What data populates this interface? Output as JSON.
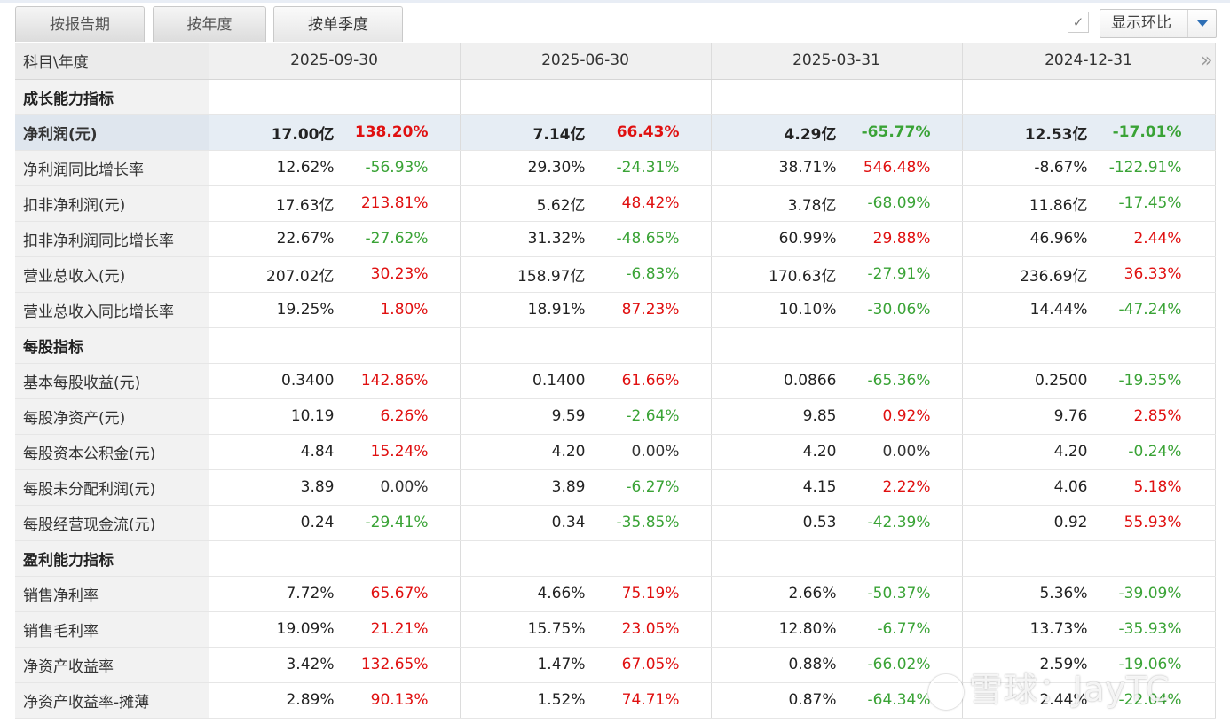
{
  "tabs": [
    {
      "label": "按报告期"
    },
    {
      "label": "按年度"
    },
    {
      "label": "按单季度"
    }
  ],
  "toggle": {
    "checkbox_mark": "✓",
    "select_label": "显示环比"
  },
  "table": {
    "corner_label": "科目\\年度",
    "periods": [
      "2025-09-30",
      "2025-06-30",
      "2025-03-31",
      "2024-12-31"
    ],
    "rows": [
      {
        "type": "section",
        "label": "成长能力指标"
      },
      {
        "type": "highlight",
        "label": "净利润(元)",
        "cells": [
          {
            "v": "17.00亿",
            "c": "138.20%",
            "d": "up"
          },
          {
            "v": "7.14亿",
            "c": "66.43%",
            "d": "up"
          },
          {
            "v": "4.29亿",
            "c": "-65.77%",
            "d": "down"
          },
          {
            "v": "12.53亿",
            "c": "-17.01%",
            "d": "down"
          }
        ]
      },
      {
        "type": "data",
        "label": "净利润同比增长率",
        "cells": [
          {
            "v": "12.62%",
            "c": "-56.93%",
            "d": "down"
          },
          {
            "v": "29.30%",
            "c": "-24.31%",
            "d": "down"
          },
          {
            "v": "38.71%",
            "c": "546.48%",
            "d": "up"
          },
          {
            "v": "-8.67%",
            "c": "-122.91%",
            "d": "down"
          }
        ]
      },
      {
        "type": "data",
        "label": "扣非净利润(元)",
        "cells": [
          {
            "v": "17.63亿",
            "c": "213.81%",
            "d": "up"
          },
          {
            "v": "5.62亿",
            "c": "48.42%",
            "d": "up"
          },
          {
            "v": "3.78亿",
            "c": "-68.09%",
            "d": "down"
          },
          {
            "v": "11.86亿",
            "c": "-17.45%",
            "d": "down"
          }
        ]
      },
      {
        "type": "data",
        "label": "扣非净利润同比增长率",
        "cells": [
          {
            "v": "22.67%",
            "c": "-27.62%",
            "d": "down"
          },
          {
            "v": "31.32%",
            "c": "-48.65%",
            "d": "down"
          },
          {
            "v": "60.99%",
            "c": "29.88%",
            "d": "up"
          },
          {
            "v": "46.96%",
            "c": "2.44%",
            "d": "up"
          }
        ]
      },
      {
        "type": "data",
        "label": "营业总收入(元)",
        "cells": [
          {
            "v": "207.02亿",
            "c": "30.23%",
            "d": "up"
          },
          {
            "v": "158.97亿",
            "c": "-6.83%",
            "d": "down"
          },
          {
            "v": "170.63亿",
            "c": "-27.91%",
            "d": "down"
          },
          {
            "v": "236.69亿",
            "c": "36.33%",
            "d": "up"
          }
        ]
      },
      {
        "type": "data",
        "label": "营业总收入同比增长率",
        "cells": [
          {
            "v": "19.25%",
            "c": "1.80%",
            "d": "up"
          },
          {
            "v": "18.91%",
            "c": "87.23%",
            "d": "up"
          },
          {
            "v": "10.10%",
            "c": "-30.06%",
            "d": "down"
          },
          {
            "v": "14.44%",
            "c": "-47.24%",
            "d": "down"
          }
        ]
      },
      {
        "type": "section",
        "label": "每股指标"
      },
      {
        "type": "data",
        "label": "基本每股收益(元)",
        "cells": [
          {
            "v": "0.3400",
            "c": "142.86%",
            "d": "up"
          },
          {
            "v": "0.1400",
            "c": "61.66%",
            "d": "up"
          },
          {
            "v": "0.0866",
            "c": "-65.36%",
            "d": "down"
          },
          {
            "v": "0.2500",
            "c": "-19.35%",
            "d": "down"
          }
        ]
      },
      {
        "type": "data",
        "label": "每股净资产(元)",
        "cells": [
          {
            "v": "10.19",
            "c": "6.26%",
            "d": "up"
          },
          {
            "v": "9.59",
            "c": "-2.64%",
            "d": "down"
          },
          {
            "v": "9.85",
            "c": "0.92%",
            "d": "up"
          },
          {
            "v": "9.76",
            "c": "2.85%",
            "d": "up"
          }
        ]
      },
      {
        "type": "data",
        "label": "每股资本公积金(元)",
        "cells": [
          {
            "v": "4.84",
            "c": "15.24%",
            "d": "up"
          },
          {
            "v": "4.20",
            "c": "0.00%",
            "d": "flat"
          },
          {
            "v": "4.20",
            "c": "0.00%",
            "d": "flat"
          },
          {
            "v": "4.20",
            "c": "-0.24%",
            "d": "down"
          }
        ]
      },
      {
        "type": "data",
        "label": "每股未分配利润(元)",
        "cells": [
          {
            "v": "3.89",
            "c": "0.00%",
            "d": "flat"
          },
          {
            "v": "3.89",
            "c": "-6.27%",
            "d": "down"
          },
          {
            "v": "4.15",
            "c": "2.22%",
            "d": "up"
          },
          {
            "v": "4.06",
            "c": "5.18%",
            "d": "up"
          }
        ]
      },
      {
        "type": "data",
        "label": "每股经营现金流(元)",
        "cells": [
          {
            "v": "0.24",
            "c": "-29.41%",
            "d": "down"
          },
          {
            "v": "0.34",
            "c": "-35.85%",
            "d": "down"
          },
          {
            "v": "0.53",
            "c": "-42.39%",
            "d": "down"
          },
          {
            "v": "0.92",
            "c": "55.93%",
            "d": "up"
          }
        ]
      },
      {
        "type": "section",
        "label": "盈利能力指标"
      },
      {
        "type": "data",
        "label": "销售净利率",
        "cells": [
          {
            "v": "7.72%",
            "c": "65.67%",
            "d": "up"
          },
          {
            "v": "4.66%",
            "c": "75.19%",
            "d": "up"
          },
          {
            "v": "2.66%",
            "c": "-50.37%",
            "d": "down"
          },
          {
            "v": "5.36%",
            "c": "-39.09%",
            "d": "down"
          }
        ]
      },
      {
        "type": "data",
        "label": "销售毛利率",
        "cells": [
          {
            "v": "19.09%",
            "c": "21.21%",
            "d": "up"
          },
          {
            "v": "15.75%",
            "c": "23.05%",
            "d": "up"
          },
          {
            "v": "12.80%",
            "c": "-6.77%",
            "d": "down"
          },
          {
            "v": "13.73%",
            "c": "-35.93%",
            "d": "down"
          }
        ]
      },
      {
        "type": "data",
        "label": "净资产收益率",
        "cells": [
          {
            "v": "3.42%",
            "c": "132.65%",
            "d": "up"
          },
          {
            "v": "1.47%",
            "c": "67.05%",
            "d": "up"
          },
          {
            "v": "0.88%",
            "c": "-66.02%",
            "d": "down"
          },
          {
            "v": "2.59%",
            "c": "-19.06%",
            "d": "down"
          }
        ]
      },
      {
        "type": "data",
        "label": "净资产收益率-摊薄",
        "cells": [
          {
            "v": "2.89%",
            "c": "90.13%",
            "d": "up"
          },
          {
            "v": "1.52%",
            "c": "74.71%",
            "d": "up"
          },
          {
            "v": "0.87%",
            "c": "-64.34%",
            "d": "down"
          },
          {
            "v": "2.44%",
            "c": "-22.04%",
            "d": "down"
          }
        ]
      }
    ]
  },
  "more_icon": "»",
  "watermark": {
    "text": "雪球：JayTC"
  },
  "colors": {
    "up": "#e01010",
    "down": "#3aa336",
    "flat": "#222222"
  }
}
